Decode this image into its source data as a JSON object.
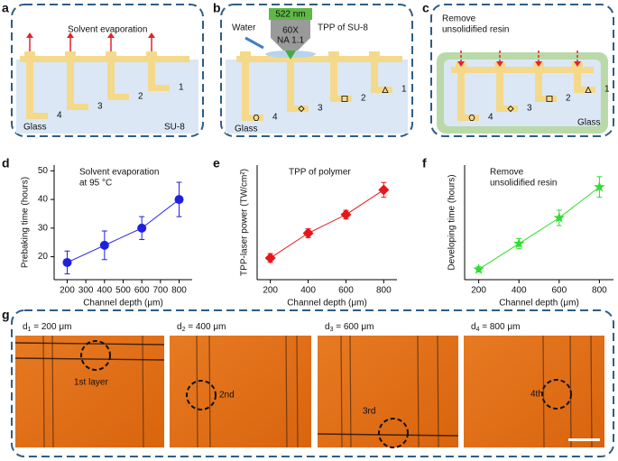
{
  "letters": [
    "a",
    "b",
    "c",
    "d",
    "e",
    "f",
    "g"
  ],
  "panels": {
    "a": {
      "title": "Solvent evaporation",
      "substrate": "Glass",
      "resin": "SU-8",
      "numbers": [
        "1",
        "2",
        "3",
        "4"
      ]
    },
    "b": {
      "wavelength": "522 nm",
      "objective": [
        "60X",
        "NA 1.1"
      ],
      "medium": "Water",
      "title": "TPP of SU-8",
      "substrate": "Glass",
      "numbers": [
        "1",
        "2",
        "3",
        "4"
      ]
    },
    "c": {
      "title": [
        "Remove",
        "unsolidified resin"
      ],
      "substrate": "Glass",
      "numbers": [
        "1",
        "2",
        "3",
        "4"
      ]
    },
    "g": {
      "images": [
        {
          "symbol": "d",
          "index": "1",
          "depth": " = 200 μm",
          "layer": "1st layer"
        },
        {
          "symbol": "d",
          "index": "2",
          "depth": " = 400 μm",
          "layer": "2nd"
        },
        {
          "symbol": "d",
          "index": "3",
          "depth": " = 600 μm",
          "layer": "3rd"
        },
        {
          "symbol": "d",
          "index": "4",
          "depth": " = 800 μm",
          "layer": "4th"
        }
      ]
    }
  },
  "chart_data": [
    {
      "type": "line",
      "marker": "circle",
      "color": "#1f1fe0",
      "annotation": [
        "Solvent evaporation",
        "at 95 °C"
      ],
      "xlabel": "Channel depth (μm)",
      "ylabel": "Prebaking time (hours)",
      "x": [
        200,
        400,
        600,
        800
      ],
      "values": [
        18,
        24,
        30,
        40
      ],
      "errors": [
        4,
        5,
        4,
        6
      ],
      "xlim": [
        130,
        870
      ],
      "xticks": [
        200,
        300,
        400,
        500,
        600,
        700,
        800
      ],
      "ylim": [
        12,
        52
      ],
      "yticks": [
        20,
        30,
        40,
        50
      ]
    },
    {
      "type": "line",
      "marker": "diamond",
      "color": "#e8161b",
      "annotation": [
        "TPP of polymer"
      ],
      "xlabel": "Channel depth (μm)",
      "ylabel": "TPP-laser power (TW/cm²)",
      "x": [
        200,
        400,
        600,
        800
      ],
      "values": [
        2.25,
        2.65,
        2.95,
        3.35
      ],
      "errors": [
        0.07,
        0.07,
        0.07,
        0.12
      ],
      "xlim": [
        130,
        870
      ],
      "xticks": [
        200,
        400,
        600,
        800
      ],
      "ylim": [
        1.9,
        3.75
      ]
    },
    {
      "type": "line",
      "marker": "star",
      "color": "#2fdc2f",
      "annotation": [
        "Remove",
        "unsolidified resin"
      ],
      "xlabel": "Channel depth (μm)",
      "ylabel": "Developing time (hours)",
      "x": [
        200,
        400,
        600,
        800
      ],
      "values": [
        0.8,
        1.8,
        2.8,
        4.0
      ],
      "errors": [
        0.1,
        0.2,
        0.3,
        0.4
      ],
      "xlim": [
        130,
        870
      ],
      "xticks": [
        200,
        400,
        600,
        800
      ],
      "ylim": [
        0.4,
        4.85
      ]
    }
  ]
}
